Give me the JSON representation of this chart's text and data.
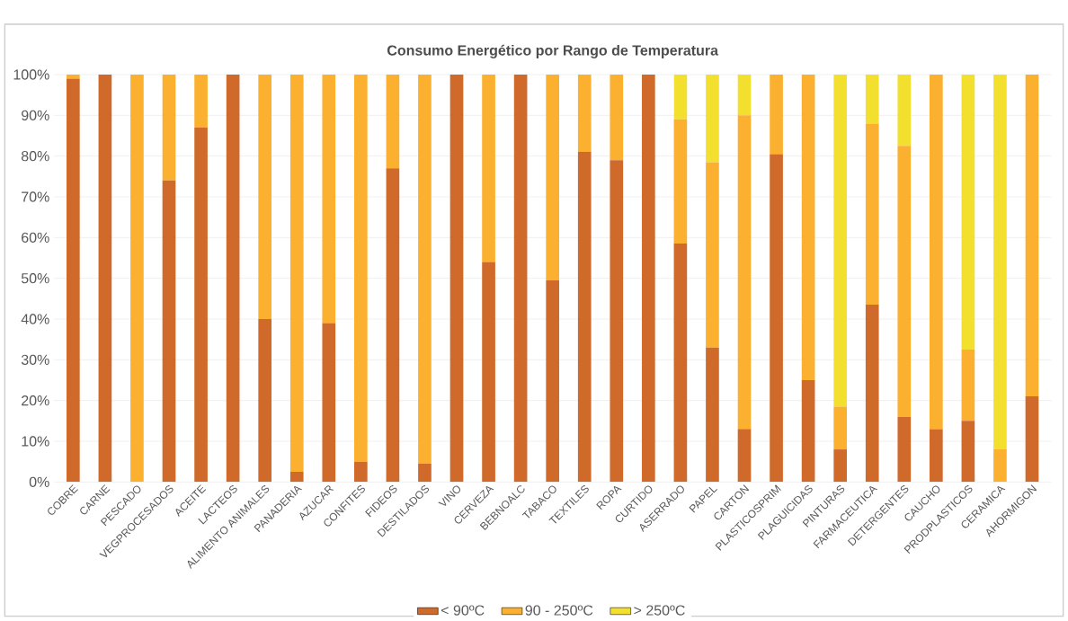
{
  "chart_data": {
    "type": "bar",
    "title": "Consumo Energético por Rango de Temperatura",
    "stacked": true,
    "categories": [
      "COBRE",
      "CARNE",
      "PESCADO",
      "VEGPROCESADOS",
      "ACEITE",
      "LACTEOS",
      "ALIMENTO ANIMALES",
      "PANADERIA",
      "AZUCAR",
      "CONFITES",
      "FIDEOS",
      "DESTILADOS",
      "VINO",
      "CERVEZA",
      "BEBNOALC",
      "TABACO",
      "TEXTILES",
      "ROPA",
      "CURTIDO",
      "ASERRADO",
      "PAPEL",
      "CARTON",
      "PLASTICOSPRIM",
      "PLAGUICIDAS",
      "PINTURAS",
      "FARMACEUTICA",
      "DETERGENTES",
      "CAUCHO",
      "PRODPLASTICOS",
      "CERAMICA",
      "AHORMIGON"
    ],
    "series": [
      {
        "name": "< 90ºC",
        "color": "#d06a2b",
        "values": [
          99,
          100,
          0,
          74,
          87,
          100,
          40,
          2.5,
          39,
          5,
          77,
          4.5,
          100,
          54,
          100,
          49.5,
          81,
          79,
          100,
          58.5,
          33,
          13,
          80.5,
          25,
          8,
          43.5,
          16,
          13,
          15,
          0,
          21
        ]
      },
      {
        "name": "90 - 250ºC",
        "color": "#fbb12f",
        "values": [
          1,
          0,
          100,
          26,
          13,
          0,
          60,
          97.5,
          61,
          95,
          23,
          95.5,
          0,
          46,
          0,
          50.5,
          19,
          21,
          0,
          30.5,
          45.5,
          77,
          19.5,
          75,
          10.5,
          44.5,
          66.5,
          87,
          17.5,
          8,
          79
        ]
      },
      {
        "name": "> 250ºC",
        "color": "#f3e02e",
        "values": [
          0,
          0,
          0,
          0,
          0,
          0,
          0,
          0,
          0,
          0,
          0,
          0,
          0,
          0,
          0,
          0,
          0,
          0,
          0,
          11,
          21.5,
          10,
          0,
          0,
          81.5,
          12,
          17.5,
          0,
          67.5,
          92,
          0
        ]
      }
    ],
    "ylim": [
      0,
      100
    ],
    "yticks": [
      {
        "value": 0,
        "label": "0%"
      },
      {
        "value": 10,
        "label": "10%"
      },
      {
        "value": 20,
        "label": "20%"
      },
      {
        "value": 30,
        "label": "30%"
      },
      {
        "value": 40,
        "label": "40%"
      },
      {
        "value": 50,
        "label": "50%"
      },
      {
        "value": 60,
        "label": "60%"
      },
      {
        "value": 70,
        "label": "70%"
      },
      {
        "value": 80,
        "label": "80%"
      },
      {
        "value": 90,
        "label": "90%"
      },
      {
        "value": 100,
        "label": "100%"
      }
    ],
    "grid": "y",
    "legend": "bottom"
  }
}
